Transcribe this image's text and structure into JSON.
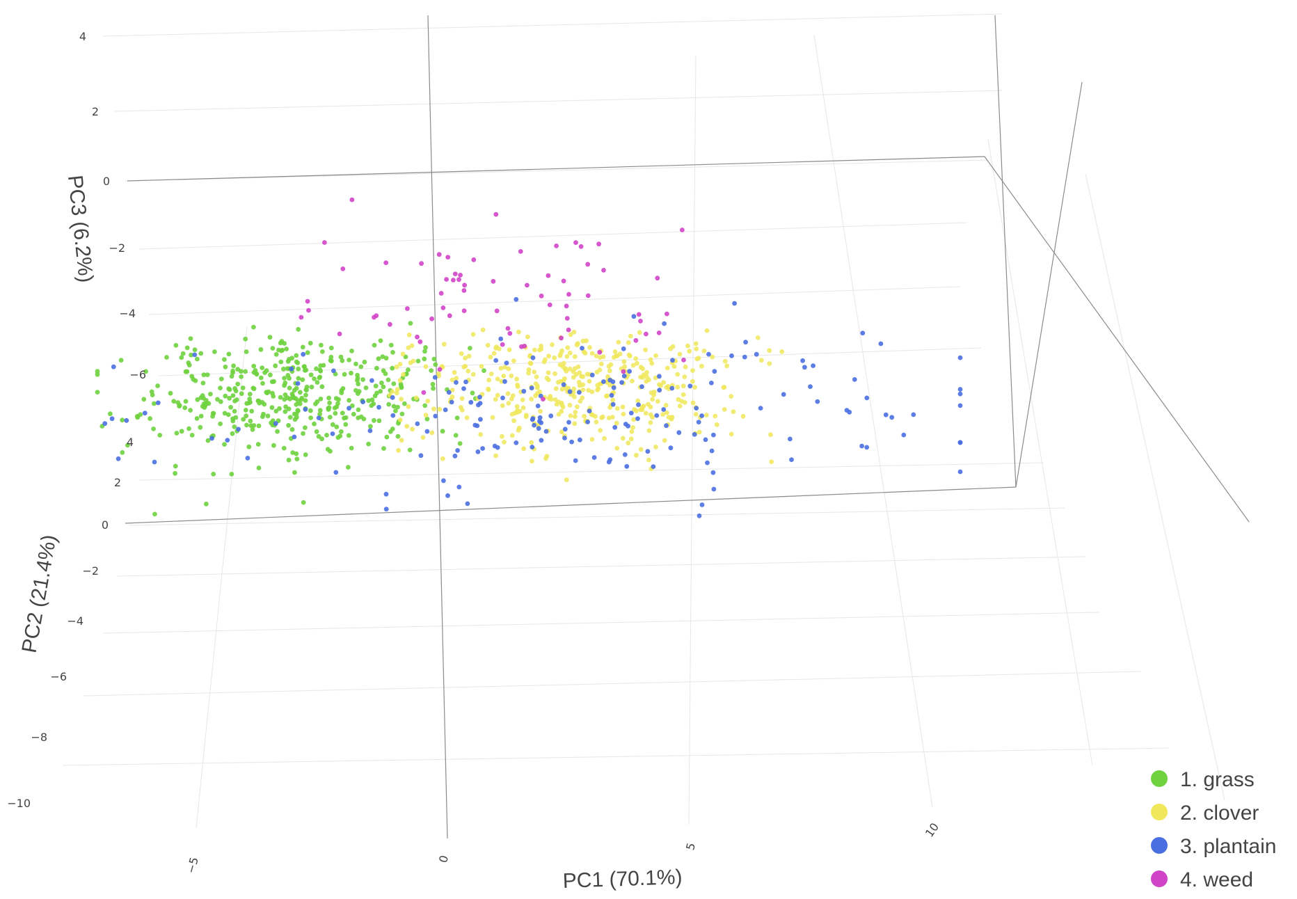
{
  "chart_data": {
    "type": "scatter",
    "dimensions": 3,
    "axes": {
      "x": {
        "label": "PC1 (70.1%)",
        "ticks": [
          "−5",
          "0",
          "5",
          "10"
        ]
      },
      "y": {
        "label": "PC2 (21.4%)",
        "ticks": [
          "4",
          "2",
          "0",
          "−2",
          "−4",
          "−6",
          "−8",
          "−10"
        ]
      },
      "z": {
        "label": "PC3 (6.2%)",
        "ticks": [
          "4",
          "2",
          "0",
          "−2",
          "−4",
          "−6"
        ]
      }
    },
    "grid": true,
    "legend": {
      "position": "bottom-right"
    },
    "series": [
      {
        "name": "1. grass",
        "color": "#6fd23e",
        "count": 430,
        "pc1_range": [
          -7.5,
          0.5
        ],
        "pc2_range": [
          -1,
          4
        ],
        "pc3_range": [
          -6,
          -1
        ]
      },
      {
        "name": "2. clover",
        "color": "#f0e85a",
        "count": 420,
        "pc1_range": [
          -1,
          9
        ],
        "pc2_range": [
          -3,
          4
        ],
        "pc3_range": [
          -6,
          -1
        ]
      },
      {
        "name": "3. plantain",
        "color": "#4a6fe0",
        "count": 180,
        "pc1_range": [
          -7,
          15
        ],
        "pc2_range": [
          -3,
          4
        ],
        "pc3_range": [
          -6,
          0
        ]
      },
      {
        "name": "4. weed",
        "color": "#d044c8",
        "count": 70,
        "pc1_range": [
          -3,
          7
        ],
        "pc2_range": [
          -1,
          4
        ],
        "pc3_range": [
          -3,
          3.5
        ]
      }
    ]
  }
}
